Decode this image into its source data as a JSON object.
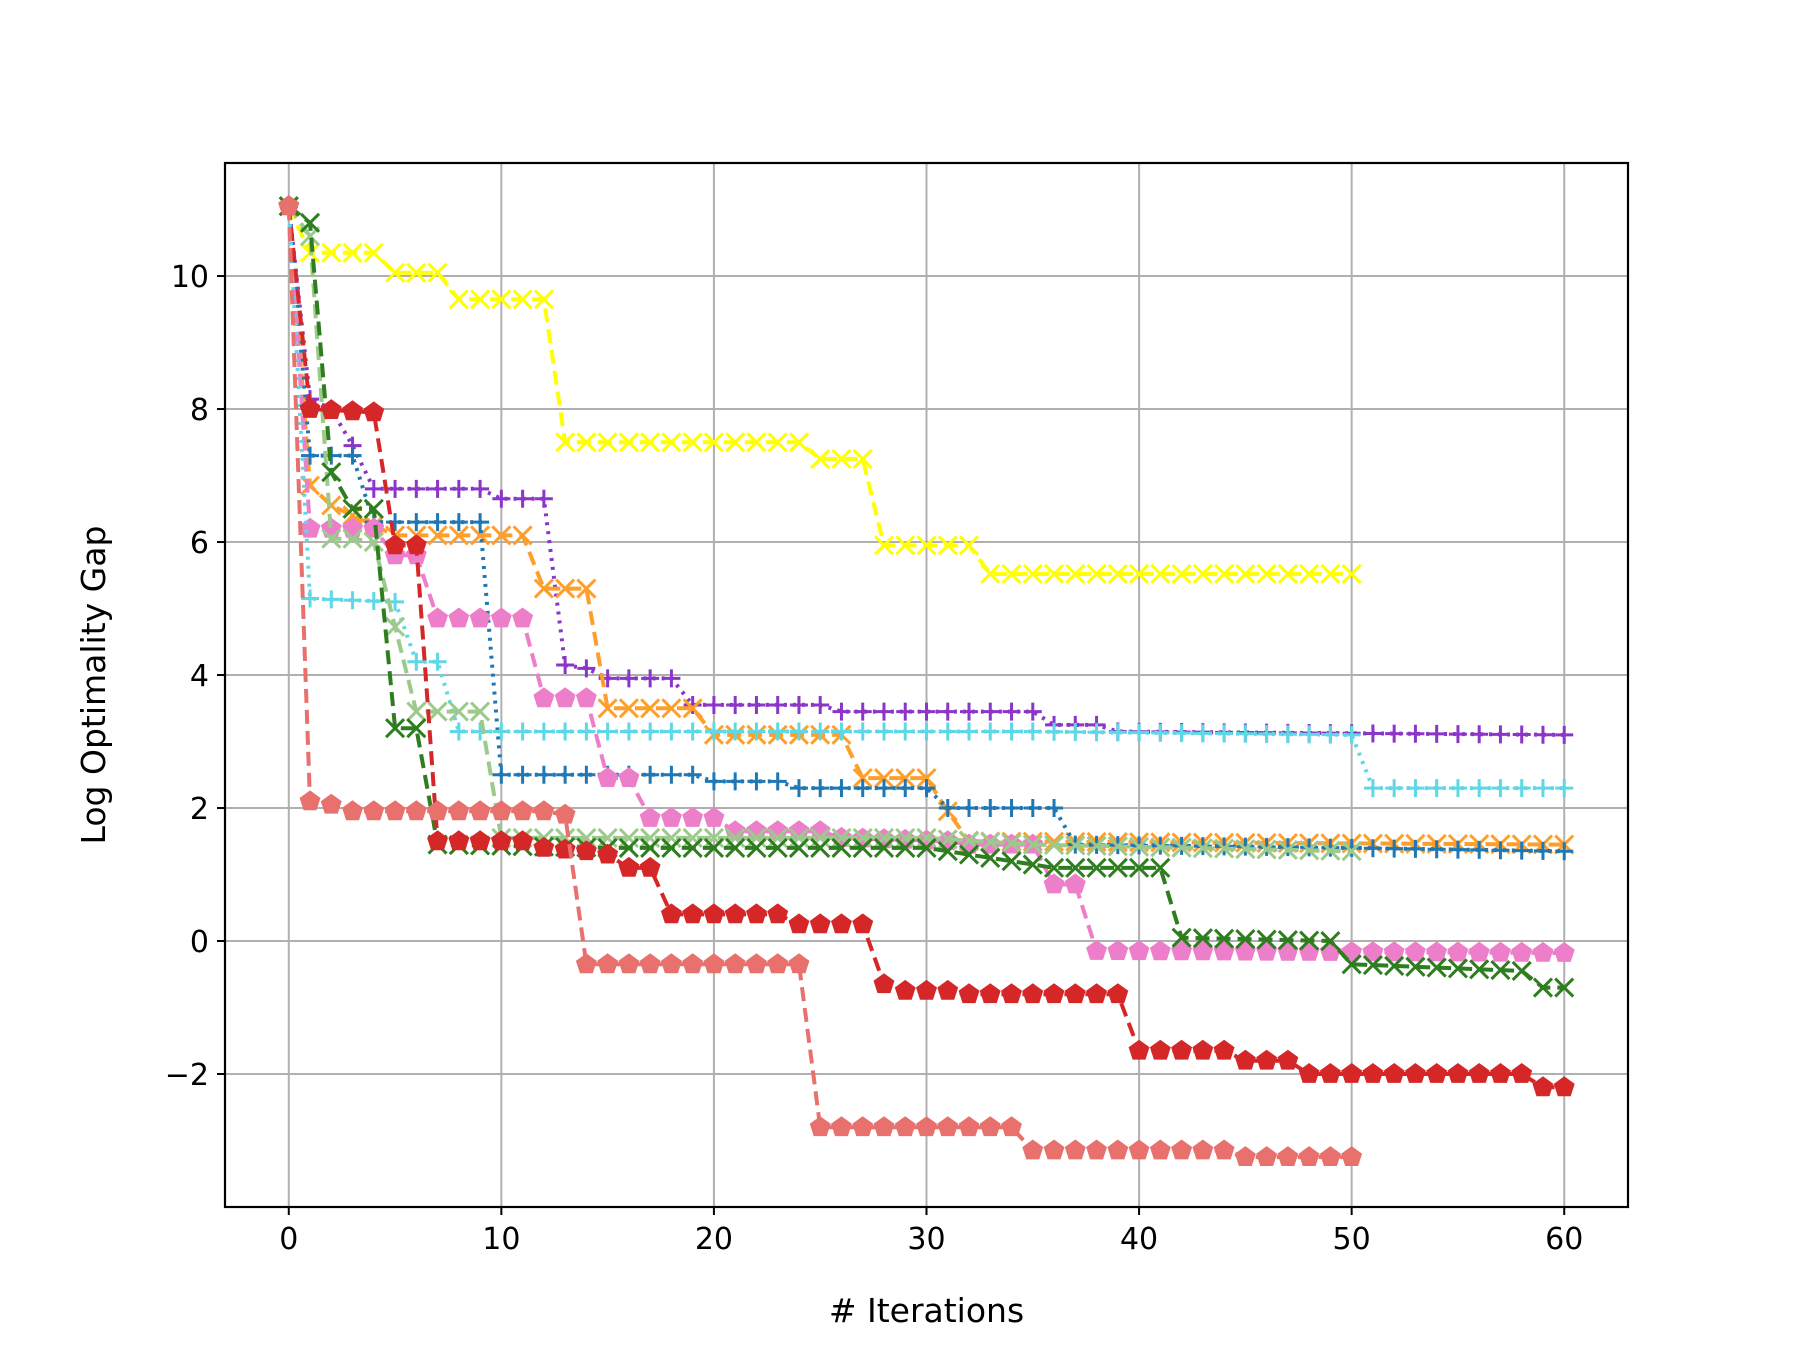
{
  "chart_data": {
    "type": "line",
    "title": "",
    "xlabel": "# Iterations",
    "ylabel": "Log Optimality Gap",
    "xlim": [
      -3,
      63
    ],
    "ylim": [
      -4,
      11.7
    ],
    "x_ticks": [
      0,
      10,
      20,
      30,
      40,
      50,
      60
    ],
    "y_ticks": [
      -2,
      0,
      2,
      4,
      6,
      8,
      10
    ],
    "grid": true,
    "legend": "none",
    "series": [
      {
        "color": "#ffff00",
        "line_style": "dashed",
        "marker": "x-diamond",
        "points": [
          [
            0,
            11.05
          ],
          [
            1,
            10.35
          ],
          [
            4,
            10.35
          ],
          [
            5,
            10.05
          ],
          [
            7,
            10.05
          ],
          [
            8,
            9.65
          ],
          [
            12,
            9.65
          ],
          [
            13,
            7.5
          ],
          [
            24,
            7.5
          ],
          [
            25,
            7.25
          ],
          [
            27,
            7.25
          ],
          [
            28,
            5.95
          ],
          [
            32,
            5.95
          ],
          [
            33,
            5.52
          ],
          [
            50,
            5.52
          ]
        ]
      },
      {
        "color": "#8b35c9",
        "line_style": "dotted",
        "marker": "plus",
        "points": [
          [
            0,
            11.05
          ],
          [
            1,
            8.15
          ],
          [
            2,
            8.0
          ],
          [
            3,
            7.45
          ],
          [
            4,
            6.8
          ],
          [
            9,
            6.8
          ],
          [
            10,
            6.65
          ],
          [
            12,
            6.65
          ],
          [
            13,
            4.15
          ],
          [
            14,
            4.1
          ],
          [
            15,
            3.95
          ],
          [
            18,
            3.95
          ],
          [
            19,
            3.55
          ],
          [
            25,
            3.55
          ],
          [
            26,
            3.45
          ],
          [
            35,
            3.45
          ],
          [
            36,
            3.25
          ],
          [
            38,
            3.25
          ],
          [
            39,
            3.15
          ],
          [
            60,
            3.1
          ]
        ]
      },
      {
        "color": "#ff9f2b",
        "line_style": "dashed",
        "marker": "x-diamond",
        "points": [
          [
            0,
            11.05
          ],
          [
            1,
            6.85
          ],
          [
            2,
            6.55
          ],
          [
            3,
            6.4
          ],
          [
            5,
            6.1
          ],
          [
            11,
            6.1
          ],
          [
            12,
            5.3
          ],
          [
            14,
            5.3
          ],
          [
            15,
            3.5
          ],
          [
            19,
            3.5
          ],
          [
            20,
            3.1
          ],
          [
            26,
            3.1
          ],
          [
            27,
            2.45
          ],
          [
            30,
            2.45
          ],
          [
            31,
            1.95
          ],
          [
            32,
            1.5
          ],
          [
            60,
            1.45
          ]
        ]
      },
      {
        "color": "#1f77b4",
        "line_style": "dotted",
        "marker": "plus",
        "points": [
          [
            0,
            11.05
          ],
          [
            1,
            7.3
          ],
          [
            3,
            7.3
          ],
          [
            4,
            6.3
          ],
          [
            9,
            6.3
          ],
          [
            10,
            2.5
          ],
          [
            19,
            2.5
          ],
          [
            20,
            2.4
          ],
          [
            23,
            2.4
          ],
          [
            24,
            2.3
          ],
          [
            30,
            2.3
          ],
          [
            31,
            2.0
          ],
          [
            36,
            2.0
          ],
          [
            37,
            1.45
          ],
          [
            50,
            1.4
          ],
          [
            60,
            1.35
          ]
        ]
      },
      {
        "color": "#ec7eca",
        "line_style": "dashed",
        "marker": "pentagon",
        "points": [
          [
            0,
            11.05
          ],
          [
            1,
            6.2
          ],
          [
            4,
            6.2
          ],
          [
            5,
            5.8
          ],
          [
            6,
            5.8
          ],
          [
            7,
            4.85
          ],
          [
            11,
            4.85
          ],
          [
            12,
            3.65
          ],
          [
            14,
            3.65
          ],
          [
            15,
            2.45
          ],
          [
            16,
            2.45
          ],
          [
            17,
            1.85
          ],
          [
            20,
            1.85
          ],
          [
            21,
            1.65
          ],
          [
            25,
            1.65
          ],
          [
            26,
            1.55
          ],
          [
            31,
            1.5
          ],
          [
            32,
            1.45
          ],
          [
            35,
            1.45
          ],
          [
            36,
            0.85
          ],
          [
            37,
            0.85
          ],
          [
            38,
            -0.15
          ],
          [
            60,
            -0.18
          ]
        ]
      },
      {
        "color": "#5fd8e6",
        "line_style": "dotted",
        "marker": "plus",
        "points": [
          [
            0,
            11.05
          ],
          [
            1,
            5.15
          ],
          [
            5,
            5.1
          ],
          [
            6,
            4.2
          ],
          [
            7,
            4.2
          ],
          [
            8,
            3.15
          ],
          [
            35,
            3.15
          ],
          [
            50,
            3.1
          ],
          [
            51,
            2.3
          ],
          [
            60,
            2.3
          ]
        ]
      },
      {
        "color": "#9cca8c",
        "line_style": "dashed",
        "marker": "x-diamond",
        "points": [
          [
            0,
            11.05
          ],
          [
            1,
            10.6
          ],
          [
            2,
            6.05
          ],
          [
            3,
            6.05
          ],
          [
            4,
            6.0
          ],
          [
            6,
            3.45
          ],
          [
            9,
            3.45
          ],
          [
            10,
            1.55
          ],
          [
            30,
            1.55
          ],
          [
            35,
            1.45
          ],
          [
            50,
            1.35
          ]
        ]
      },
      {
        "color": "#2e7d1e",
        "line_style": "dashed",
        "marker": "x",
        "points": [
          [
            0,
            11.05
          ],
          [
            1,
            10.8
          ],
          [
            2,
            7.05
          ],
          [
            3,
            6.5
          ],
          [
            4,
            6.5
          ],
          [
            5,
            3.2
          ],
          [
            6,
            3.2
          ],
          [
            7,
            1.45
          ],
          [
            15,
            1.4
          ],
          [
            30,
            1.4
          ],
          [
            36,
            1.1
          ],
          [
            41,
            1.1
          ],
          [
            42,
            0.05
          ],
          [
            49,
            0.0
          ],
          [
            50,
            -0.35
          ],
          [
            58,
            -0.45
          ],
          [
            59,
            -0.7
          ],
          [
            60,
            -0.7
          ]
        ]
      },
      {
        "color": "#d62728",
        "line_style": "dashed",
        "marker": "pentagon",
        "points": [
          [
            0,
            11.05
          ],
          [
            1,
            8.0
          ],
          [
            4,
            7.95
          ],
          [
            5,
            5.95
          ],
          [
            6,
            5.95
          ],
          [
            7,
            1.5
          ],
          [
            11,
            1.5
          ],
          [
            12,
            1.4
          ],
          [
            14,
            1.35
          ],
          [
            15,
            1.3
          ],
          [
            16,
            1.1
          ],
          [
            17,
            1.1
          ],
          [
            18,
            0.4
          ],
          [
            23,
            0.4
          ],
          [
            24,
            0.25
          ],
          [
            27,
            0.25
          ],
          [
            28,
            -0.65
          ],
          [
            29,
            -0.75
          ],
          [
            31,
            -0.75
          ],
          [
            32,
            -0.8
          ],
          [
            39,
            -0.8
          ],
          [
            40,
            -1.65
          ],
          [
            44,
            -1.65
          ],
          [
            45,
            -1.8
          ],
          [
            47,
            -1.8
          ],
          [
            48,
            -2.0
          ],
          [
            58,
            -2.0
          ],
          [
            59,
            -2.2
          ],
          [
            60,
            -2.2
          ]
        ]
      },
      {
        "color": "#e8716d",
        "line_style": "dashed",
        "marker": "pentagon",
        "points": [
          [
            0,
            11.05
          ],
          [
            1,
            2.1
          ],
          [
            2,
            2.05
          ],
          [
            3,
            1.95
          ],
          [
            12,
            1.95
          ],
          [
            13,
            1.9
          ],
          [
            14,
            -0.35
          ],
          [
            24,
            -0.35
          ],
          [
            25,
            -2.8
          ],
          [
            34,
            -2.8
          ],
          [
            35,
            -3.15
          ],
          [
            44,
            -3.15
          ],
          [
            45,
            -3.25
          ],
          [
            50,
            -3.25
          ]
        ]
      }
    ]
  }
}
